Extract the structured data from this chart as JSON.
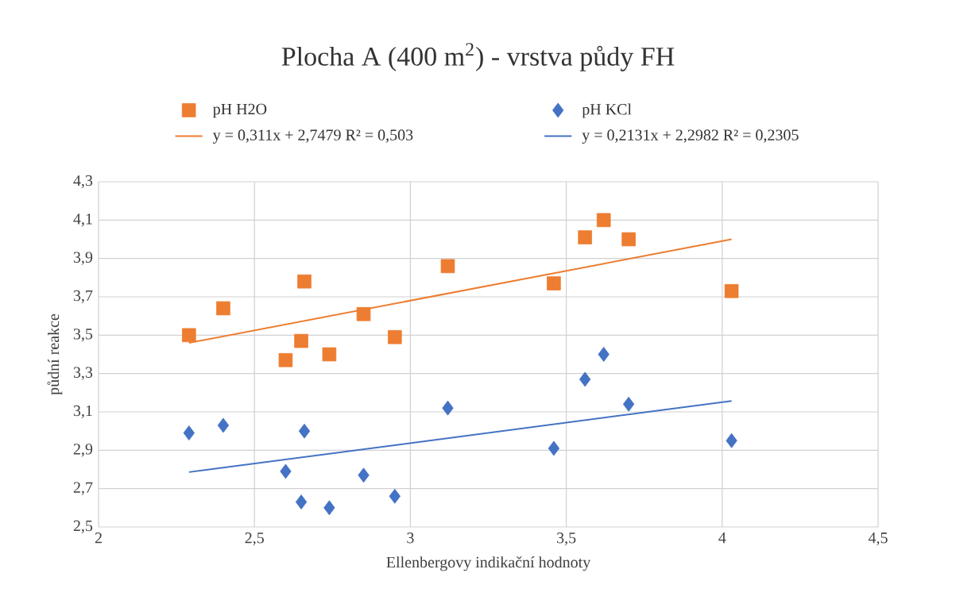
{
  "chart_data": {
    "type": "scatter",
    "title": "Plocha A (400 m$^{2}$) - vrstva půdy FH",
    "xlabel": "Ellenbergovy indikační hodnoty",
    "ylabel": "půdní reakce",
    "xlim": [
      2,
      4.5
    ],
    "ylim": [
      2.5,
      4.3
    ],
    "xticks": [
      2,
      {
        "value": 2.5,
        "label": "2,5"
      },
      3,
      {
        "value": 3.5,
        "label": "3,5"
      },
      4,
      {
        "value": 4.5,
        "label": "4,5"
      }
    ],
    "yticks": [
      {
        "value": 2.5,
        "label": "2,5"
      },
      {
        "value": 2.7,
        "label": "2,7"
      },
      {
        "value": 2.9,
        "label": "2,9"
      },
      {
        "value": 3.1,
        "label": "3,1"
      },
      {
        "value": 3.3,
        "label": "3,3"
      },
      {
        "value": 3.5,
        "label": "3,5"
      },
      {
        "value": 3.7,
        "label": "3,7"
      },
      {
        "value": 3.9,
        "label": "3,9"
      },
      {
        "value": 4.1,
        "label": "4,1"
      },
      {
        "value": 4.3,
        "label": "4,3"
      }
    ],
    "grid": true,
    "legend": "top",
    "series": [
      {
        "name": "pH H2O",
        "marker": "square",
        "color": "#ed7d31",
        "x": [
          2.29,
          2.4,
          2.6,
          2.65,
          2.66,
          2.74,
          2.85,
          2.95,
          3.12,
          3.46,
          3.56,
          3.62,
          3.7,
          4.03
        ],
        "values": [
          3.5,
          3.64,
          3.37,
          3.47,
          3.78,
          3.4,
          3.61,
          3.49,
          3.86,
          3.77,
          4.01,
          4.1,
          4.0,
          3.73
        ]
      },
      {
        "name": "pH KCl",
        "marker": "diamond",
        "color": "#4472c4",
        "x": [
          2.29,
          2.4,
          2.6,
          2.65,
          2.66,
          2.74,
          2.85,
          2.95,
          3.12,
          3.46,
          3.56,
          3.62,
          3.7,
          4.03
        ],
        "values": [
          2.99,
          3.03,
          2.79,
          2.63,
          3.0,
          2.6,
          2.77,
          2.66,
          3.12,
          2.91,
          3.27,
          3.4,
          3.14,
          2.95
        ]
      },
      {
        "name": "y = 0,311x + 2,7479    R² = 0,503",
        "type": "line",
        "marker": "none",
        "line_style": "solid",
        "color": "#ed7d31",
        "x": [
          2.29,
          4.03
        ],
        "values": [
          3.46,
          4.0
        ]
      },
      {
        "name": "y = 0,2131x + 2,2982    R² = 0,2305",
        "type": "line",
        "marker": "none",
        "line_style": "solid",
        "color": "#4472c4",
        "x": [
          2.29,
          4.03
        ],
        "values": [
          2.786,
          3.157
        ]
      }
    ]
  }
}
